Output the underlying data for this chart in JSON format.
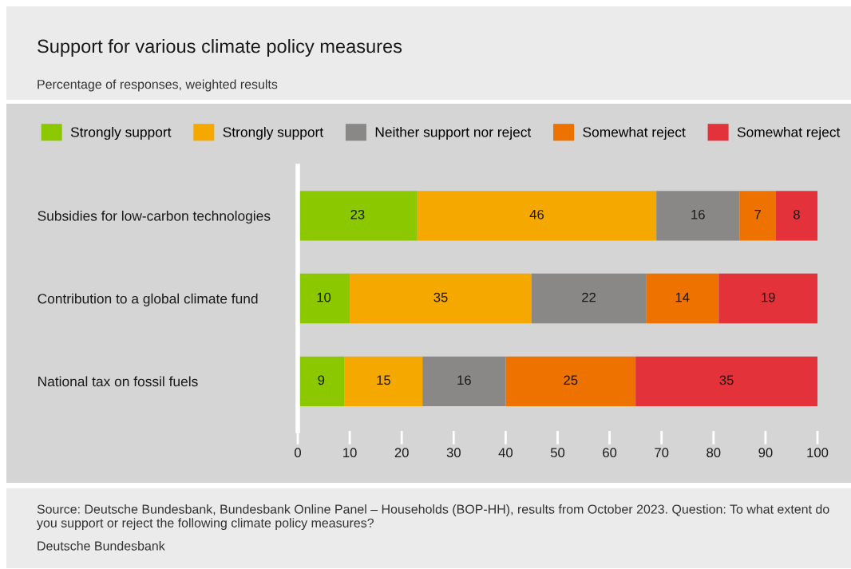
{
  "chart_data": {
    "type": "bar",
    "orientation": "horizontal",
    "stacked": true,
    "title": "Support for various climate policy measures",
    "subtitle": "Percentage of responses, weighted results",
    "categories": [
      "Subsidies for low-carbon technologies",
      "Contribution to a global climate fund",
      "National tax on fossil fuels"
    ],
    "series": [
      {
        "name": "Strongly support",
        "color": "#8cc800",
        "values": [
          23,
          10,
          9
        ]
      },
      {
        "name": "Strongly support",
        "color": "#f5a800",
        "values": [
          46,
          35,
          15
        ]
      },
      {
        "name": "Neither support nor reject",
        "color": "#8a8886",
        "values": [
          16,
          22,
          16
        ]
      },
      {
        "name": "Somewhat reject",
        "color": "#ee7200",
        "values": [
          7,
          14,
          25
        ]
      },
      {
        "name": "Somewhat reject",
        "color": "#e3323a",
        "values": [
          8,
          19,
          35
        ]
      }
    ],
    "xlim": [
      0,
      100
    ],
    "xticks": [
      0,
      10,
      20,
      30,
      40,
      50,
      60,
      70,
      80,
      90,
      100
    ],
    "data_labels": true,
    "legend": "top",
    "grid": false,
    "annotations": [
      "Source: Deutsche Bundesbank, Bundesbank Online Panel – Households (BOP-HH), results from October 2023. Question: To what extent do you support or reject the following climate policy measures?",
      "Deutsche Bundesbank"
    ]
  }
}
